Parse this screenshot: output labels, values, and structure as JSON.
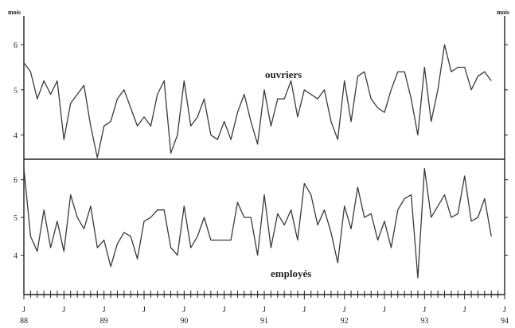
{
  "chart_data": [
    {
      "type": "line",
      "panel": "top",
      "ylabel": "mois",
      "ylim": [
        3.5,
        6.6
      ],
      "yticks": [
        4,
        5,
        6
      ],
      "series": [
        {
          "name": "ouvriers",
          "values": [
            5.6,
            5.4,
            4.8,
            5.2,
            4.9,
            5.2,
            3.9,
            4.7,
            4.9,
            5.1,
            4.2,
            3.5,
            4.2,
            4.3,
            4.8,
            5.0,
            4.6,
            4.2,
            4.4,
            4.2,
            4.9,
            5.2,
            3.6,
            4.0,
            5.2,
            4.2,
            4.4,
            4.8,
            4.0,
            3.9,
            4.3,
            3.9,
            4.5,
            4.9,
            4.3,
            3.8,
            5.0,
            4.2,
            4.8,
            4.8,
            5.2,
            4.4,
            5.0,
            4.9,
            4.8,
            5.0,
            4.3,
            3.9,
            5.2,
            4.3,
            5.3,
            5.4,
            4.8,
            4.6,
            4.5,
            5.0,
            5.4,
            5.4,
            4.8,
            4.0,
            5.5,
            4.3,
            5.0,
            6.0,
            5.4,
            5.5,
            5.5,
            5.0,
            5.3,
            5.4,
            5.2
          ]
        }
      ]
    },
    {
      "type": "line",
      "panel": "bottom",
      "ylabel": "",
      "ylim": [
        3.0,
        6.5
      ],
      "yticks": [
        4,
        5,
        6
      ],
      "x_tick_labels": [
        {
          "month": "J",
          "year": "88"
        },
        {
          "month": "J",
          "year": ""
        },
        {
          "month": "J",
          "year": "89"
        },
        {
          "month": "J",
          "year": ""
        },
        {
          "month": "J",
          "year": "90"
        },
        {
          "month": "J",
          "year": ""
        },
        {
          "month": "J",
          "year": "91"
        },
        {
          "month": "J",
          "year": ""
        },
        {
          "month": "J",
          "year": "92"
        },
        {
          "month": "J",
          "year": ""
        },
        {
          "month": "J",
          "year": "93"
        },
        {
          "month": "J",
          "year": ""
        },
        {
          "month": "J",
          "year": "94"
        }
      ],
      "series": [
        {
          "name": "employés",
          "values": [
            6.3,
            4.5,
            4.1,
            5.2,
            4.2,
            4.9,
            4.1,
            5.6,
            5.0,
            4.7,
            5.3,
            4.2,
            4.4,
            3.7,
            4.3,
            4.6,
            4.5,
            3.9,
            4.9,
            5.0,
            5.2,
            5.2,
            4.2,
            4.0,
            5.3,
            4.2,
            4.5,
            5.0,
            4.4,
            4.4,
            4.4,
            4.4,
            5.4,
            5.0,
            5.0,
            4.0,
            5.6,
            4.2,
            5.1,
            4.8,
            5.2,
            4.4,
            5.9,
            5.6,
            4.8,
            5.2,
            4.6,
            3.8,
            5.3,
            4.7,
            5.8,
            5.0,
            5.1,
            4.4,
            4.9,
            4.2,
            5.2,
            5.5,
            5.6,
            3.4,
            6.3,
            5.0,
            5.3,
            5.6,
            5.0,
            5.1,
            6.1,
            4.9,
            5.0,
            5.5,
            4.5
          ]
        }
      ]
    }
  ],
  "labels": {
    "unit_left": "mois",
    "unit_right": "mois",
    "series_top": "ouvriers",
    "series_bottom": "employés"
  }
}
